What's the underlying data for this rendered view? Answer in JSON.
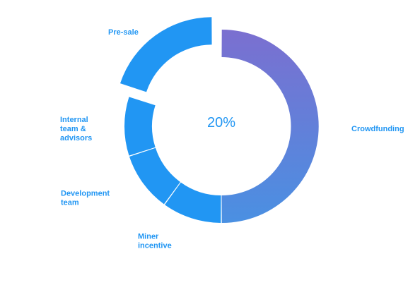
{
  "chart_data": {
    "type": "pie",
    "donut": true,
    "center_label": "20%",
    "slices": [
      {
        "label": "Crowdfunding",
        "label_lines": [
          "Crowdfunding"
        ],
        "value": 50,
        "color_start": "#7b6fd0",
        "color_end": "#4a90e2",
        "exploded": false
      },
      {
        "label": "Miner incentive",
        "label_lines": [
          "Miner",
          "incentive"
        ],
        "value": 10,
        "color": "#2196f3",
        "exploded": false
      },
      {
        "label": "Development team",
        "label_lines": [
          "Development",
          "team"
        ],
        "value": 10,
        "color": "#2196f3",
        "exploded": false
      },
      {
        "label": "Internal team & advisors",
        "label_lines": [
          "Internal",
          "team &",
          "advisors"
        ],
        "value": 10,
        "color": "#2196f3",
        "exploded": false
      },
      {
        "label": "Pre-sale",
        "label_lines": [
          "Pre-sale"
        ],
        "value": 20,
        "color": "#2196f3",
        "exploded": true
      }
    ],
    "legend": "none",
    "label_color": "#2196f3"
  }
}
